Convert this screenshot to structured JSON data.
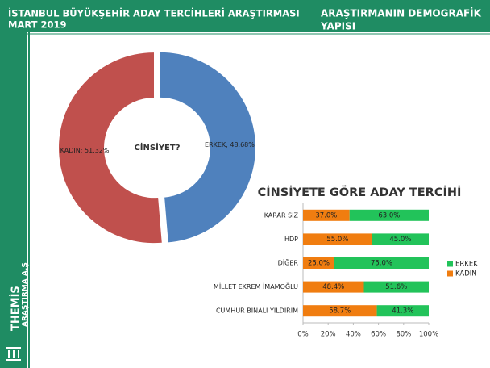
{
  "header": {
    "title": "İSTANBUL BÜYÜKŞEHİR ADAY TERCİHLERİ ARAŞTIRMASI",
    "date": "MART 2019",
    "section": [
      "ARAŞTIRMANIN DEMOGRAFİK",
      "YAPISI"
    ]
  },
  "sidebar": {
    "brand": "THEMİS",
    "sub": "ARAŞTIRMA A.Ş"
  },
  "chart_data": [
    {
      "type": "pie",
      "donut": true,
      "center_label": "CİNSİYET?",
      "categories": [
        "ERKEK",
        "KADIN"
      ],
      "values": [
        48.68,
        51.32
      ],
      "value_labels": [
        "ERKEK; 48.68%",
        "KADIN; 51.32%"
      ],
      "colors": [
        "#4f81bd",
        "#c0504d"
      ]
    },
    {
      "type": "bar",
      "orientation": "horizontal",
      "stacked": true,
      "title": "CİNSİYETE GÖRE ADAY TERCİHİ",
      "categories": [
        "KARAR SIZ",
        "HDP",
        "DİĞER",
        "MİLLET EKREM İMAMOĞLU",
        "CUMHUR BİNALİ YILDIRIM"
      ],
      "series": [
        {
          "name": "KADIN",
          "color": "#f07d10",
          "values": [
            37.0,
            55.0,
            25.0,
            48.4,
            58.7
          ],
          "value_labels": [
            "37.0%",
            "55.0%",
            "25.0%",
            "48.4%",
            "58.7%"
          ]
        },
        {
          "name": "ERKEK",
          "color": "#22c35a",
          "values": [
            63.0,
            45.0,
            75.0,
            51.6,
            41.3
          ],
          "value_labels": [
            "63.0%",
            "45.0%",
            "75.0%",
            "51.6%",
            "41.3%"
          ]
        }
      ],
      "xlim": [
        0,
        100
      ],
      "xticks": [
        {
          "value": 0,
          "label": "0%"
        },
        {
          "value": 20,
          "label": "20%"
        },
        {
          "value": 40,
          "label": "40%"
        },
        {
          "value": 60,
          "label": "60%"
        },
        {
          "value": 80,
          "label": "80%"
        },
        {
          "value": 100,
          "label": "100%"
        }
      ],
      "legend": "right"
    }
  ]
}
